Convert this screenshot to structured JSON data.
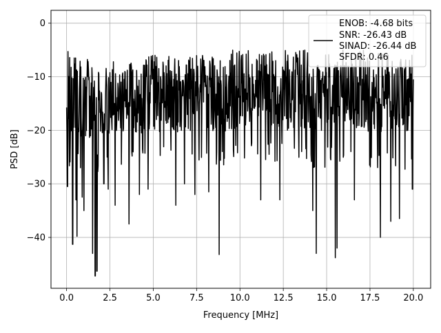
{
  "chart_data": {
    "type": "line",
    "title": "",
    "xlabel": "Frequency [MHz]",
    "ylabel": "PSD [dB]",
    "xlim": [
      -0.9,
      21.0
    ],
    "ylim": [
      -49.5,
      2.4
    ],
    "grid": true,
    "x_ticks": [
      0.0,
      2.5,
      5.0,
      7.5,
      10.0,
      12.5,
      15.0,
      17.5,
      20.0
    ],
    "x_tick_labels": [
      "0.0",
      "2.5",
      "5.0",
      "7.5",
      "10.0",
      "12.5",
      "15.0",
      "17.5",
      "20.0"
    ],
    "y_ticks": [
      0,
      -10,
      -20,
      -30,
      -40
    ],
    "y_tick_labels": [
      "0",
      "−10",
      "−20",
      "−30",
      "−40"
    ],
    "legend": {
      "placement": "top-right",
      "entries": [
        "ENOB: -4.68 bits",
        "SNR: -26.43 dB",
        "SINAD: -26.44 dB",
        "SFDR: 0.46"
      ]
    },
    "series": [
      {
        "color": "#000000",
        "x_range": [
          0.0,
          20.0
        ],
        "x_step": 0.02,
        "upper_envelope_db": [
          -5,
          -6,
          -7,
          -7,
          -7,
          -6,
          -6,
          -6,
          -6,
          -5,
          -5,
          -5,
          -5,
          -5,
          -5,
          -5,
          -5,
          -5,
          -5,
          -5,
          -6
        ],
        "lower_envelope_db": [
          -24,
          -24,
          -24,
          -23,
          -23,
          -23,
          -23,
          -23,
          -23,
          -23,
          -22,
          -22,
          -22,
          -23,
          -23,
          -23,
          -23,
          -23,
          -23,
          -23,
          -24
        ],
        "dips": [
          {
            "x": 0.05,
            "y": -30.5
          },
          {
            "x": 0.35,
            "y": -41.3
          },
          {
            "x": 0.55,
            "y": -33.0
          },
          {
            "x": 0.6,
            "y": -39.8
          },
          {
            "x": 0.9,
            "y": -32.5
          },
          {
            "x": 1.0,
            "y": -35.0
          },
          {
            "x": 1.5,
            "y": -43.0
          },
          {
            "x": 1.65,
            "y": -47.2
          },
          {
            "x": 1.75,
            "y": -46.3
          },
          {
            "x": 2.15,
            "y": -30.0
          },
          {
            "x": 2.4,
            "y": -31.0
          },
          {
            "x": 2.8,
            "y": -34.0
          },
          {
            "x": 3.6,
            "y": -37.5
          },
          {
            "x": 4.2,
            "y": -32.0
          },
          {
            "x": 4.7,
            "y": -31.0
          },
          {
            "x": 6.3,
            "y": -34.0
          },
          {
            "x": 6.8,
            "y": -30.0
          },
          {
            "x": 7.4,
            "y": -32.0
          },
          {
            "x": 8.2,
            "y": -31.5
          },
          {
            "x": 8.8,
            "y": -43.2
          },
          {
            "x": 11.2,
            "y": -33.0
          },
          {
            "x": 12.3,
            "y": -33.0
          },
          {
            "x": 14.2,
            "y": -35.0
          },
          {
            "x": 14.4,
            "y": -43.0
          },
          {
            "x": 15.5,
            "y": -43.8
          },
          {
            "x": 15.6,
            "y": -42.0
          },
          {
            "x": 16.6,
            "y": -33.0
          },
          {
            "x": 18.1,
            "y": -40.0
          },
          {
            "x": 18.7,
            "y": -37.0
          },
          {
            "x": 19.2,
            "y": -36.5
          },
          {
            "x": 19.95,
            "y": -31.0
          }
        ]
      }
    ]
  }
}
